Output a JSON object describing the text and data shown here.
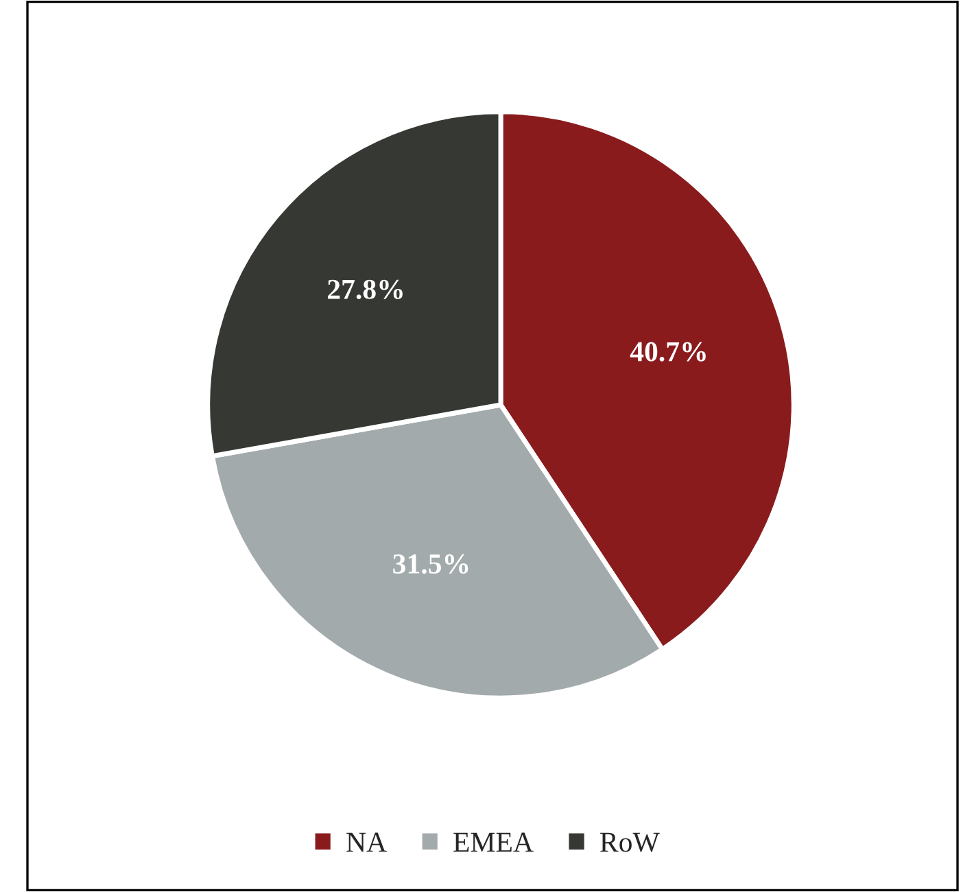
{
  "chart_data": {
    "type": "pie",
    "categories": [
      "NA",
      "EMEA",
      "RoW"
    ],
    "values": [
      40.7,
      31.5,
      27.8
    ],
    "colors": [
      "#8a1b1d",
      "#a3aaab",
      "#363833"
    ],
    "value_labels": [
      "40.7%",
      "31.5%",
      "27.8%"
    ],
    "legend": "bottom"
  }
}
